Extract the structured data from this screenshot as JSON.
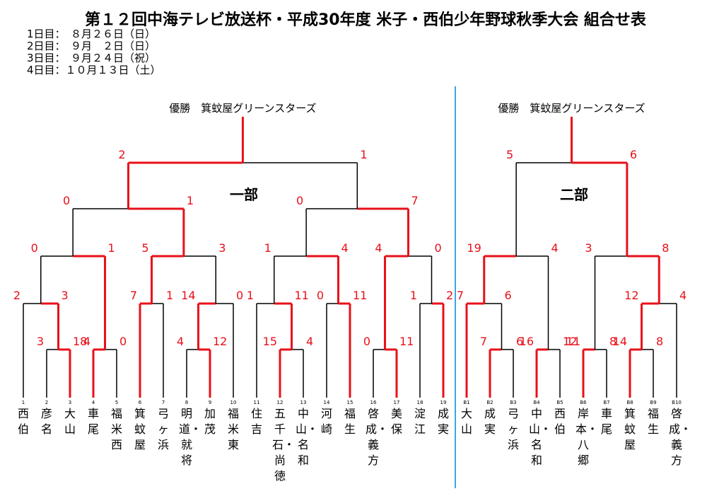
{
  "title": "第１２回中海テレビ放送杯・平成30年度 米子・西伯少年野球秋季大会 組合せ表",
  "schedule": [
    "1日目：　８月２６日（日）",
    "2日目：　９月　２日（日）",
    "3日目：　９月２４日（祝）",
    "4日目：１０月１３日（土）"
  ],
  "colors": {
    "win": "#e8101a",
    "line": "#000000",
    "divider": "#3aa7e6"
  },
  "divisions": {
    "d1": {
      "name": "一部",
      "champion_label": "優勝　箕蚊屋グリーンスターズ"
    },
    "d2": {
      "name": "二部",
      "champion_label": "優勝　箕蚊屋グリーンスターズ"
    }
  },
  "teams": [
    {
      "num": "1",
      "name": "西伯"
    },
    {
      "num": "2",
      "name": "彦名"
    },
    {
      "num": "3",
      "name": "大山"
    },
    {
      "num": "4",
      "name": "車尾"
    },
    {
      "num": "5",
      "name": "福米西"
    },
    {
      "num": "6",
      "name": "箕蚊屋"
    },
    {
      "num": "7",
      "name": "弓ヶ浜"
    },
    {
      "num": "8",
      "name": "明道・就将"
    },
    {
      "num": "9",
      "name": "加茂"
    },
    {
      "num": "10",
      "name": "福米東"
    },
    {
      "num": "11",
      "name": "住吉"
    },
    {
      "num": "12",
      "name": "五千石・尚徳"
    },
    {
      "num": "13",
      "name": "中山・名和"
    },
    {
      "num": "14",
      "name": "河崎"
    },
    {
      "num": "15",
      "name": "福生"
    },
    {
      "num": "16",
      "name": "啓成・義方"
    },
    {
      "num": "17",
      "name": "美保"
    },
    {
      "num": "18",
      "name": "淀江"
    },
    {
      "num": "19",
      "name": "成実"
    },
    {
      "num": "B1",
      "name": "大山"
    },
    {
      "num": "B2",
      "name": "成実"
    },
    {
      "num": "B3",
      "name": "弓ヶ浜"
    },
    {
      "num": "B4",
      "name": "中山・名和"
    },
    {
      "num": "B5",
      "name": "西伯"
    },
    {
      "num": "B6",
      "name": "岸本・八郷"
    },
    {
      "num": "B7",
      "name": "車尾"
    },
    {
      "num": "B8",
      "name": "箕蚊屋"
    },
    {
      "num": "B9",
      "name": "福生"
    },
    {
      "num": "B10",
      "name": "啓成・義方"
    }
  ],
  "scores": {
    "d1_final": [
      "2",
      "1"
    ],
    "d1_semi_a": [
      "0",
      "1"
    ],
    "d1_semi_b": [
      "0",
      "7"
    ],
    "d1_qf_1": [
      "0",
      "1"
    ],
    "d1_qf_2": [
      "5",
      "3"
    ],
    "d1_qf_3": [
      "1",
      "4"
    ],
    "d1_qf_4": [
      "4",
      "0"
    ],
    "d1_r2_1": [
      "2",
      "3"
    ],
    "d1_r2_2": [
      "7",
      "1"
    ],
    "d1_r2_3": [
      "14",
      "0"
    ],
    "d1_r2_4": [
      "1",
      "11"
    ],
    "d1_r2_5": [
      "0",
      "11"
    ],
    "d1_r2_6": [
      "1",
      "2"
    ],
    "d1_r1_1": [
      "3",
      "18"
    ],
    "d1_r1_2": [
      "4",
      "0"
    ],
    "d1_r1_3": [
      "4",
      "12"
    ],
    "d1_r1_4": [
      "15",
      "4"
    ],
    "d1_r1_5": [
      "0",
      "11"
    ],
    "d2_final": [
      "5",
      "6"
    ],
    "d2_semi_a": [
      "19",
      "4"
    ],
    "d2_semi_b": [
      "3",
      "8"
    ],
    "d2_qf_1": [
      "7",
      "6"
    ],
    "d2_qf_4": [
      "12",
      "4"
    ],
    "d2_r1_1": [
      "7",
      "6"
    ],
    "d2_r1_2": [
      "16",
      "12"
    ],
    "d2_r1_3": [
      "11",
      "8"
    ],
    "d2_r1_4": [
      "14",
      "8"
    ]
  }
}
